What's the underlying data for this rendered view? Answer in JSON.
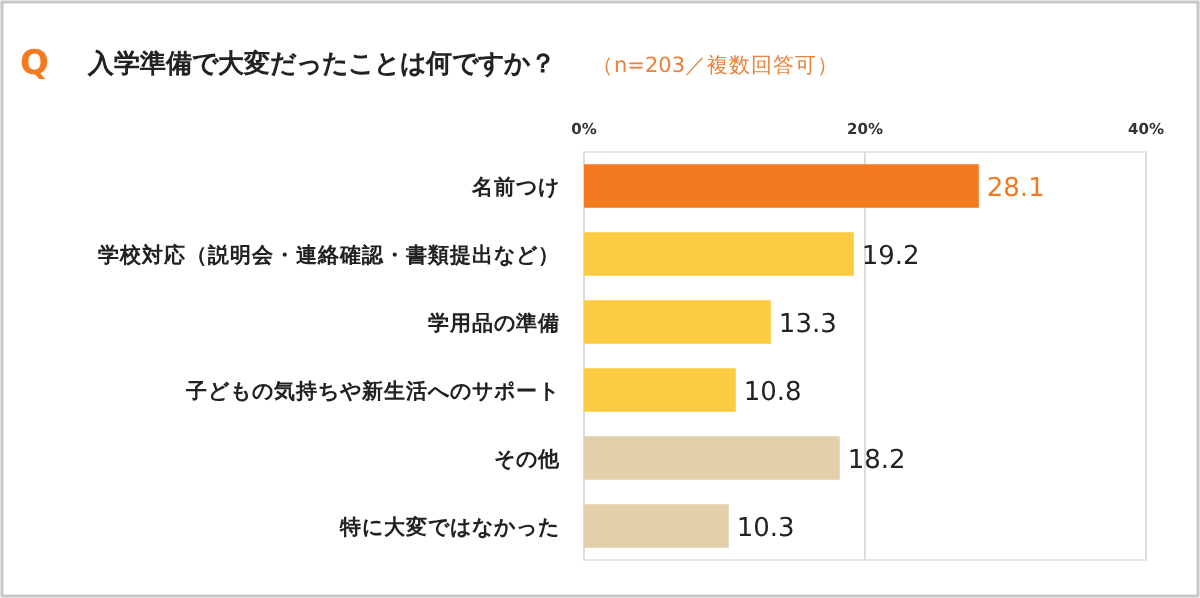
{
  "chart_data": {
    "type": "bar",
    "orientation": "horizontal",
    "title": "入学準備で大変だったことは何ですか？",
    "subtitle": "（n=203／複数回答可）",
    "annotations": [
      "Q"
    ],
    "categories": [
      "名前つけ",
      "学校対応（説明会・連絡確認・書類提出など）",
      "学用品の準備",
      "子どもの気持ちや新生活へのサポート",
      "その他",
      "特に大変ではなかった"
    ],
    "values": [
      28.1,
      19.2,
      13.3,
      10.8,
      18.2,
      10.3
    ],
    "colors": [
      "#f47a20",
      "#fccb41",
      "#fccb41",
      "#fccb41",
      "#e3cfa9",
      "#e3cfa9"
    ],
    "xlim": [
      0,
      40
    ],
    "xticks": [
      {
        "value": 0,
        "label": "0%"
      },
      {
        "value": 20,
        "label": "20%"
      },
      {
        "value": 40,
        "label": "40%"
      }
    ],
    "grid": "x",
    "data_labels": true
  }
}
